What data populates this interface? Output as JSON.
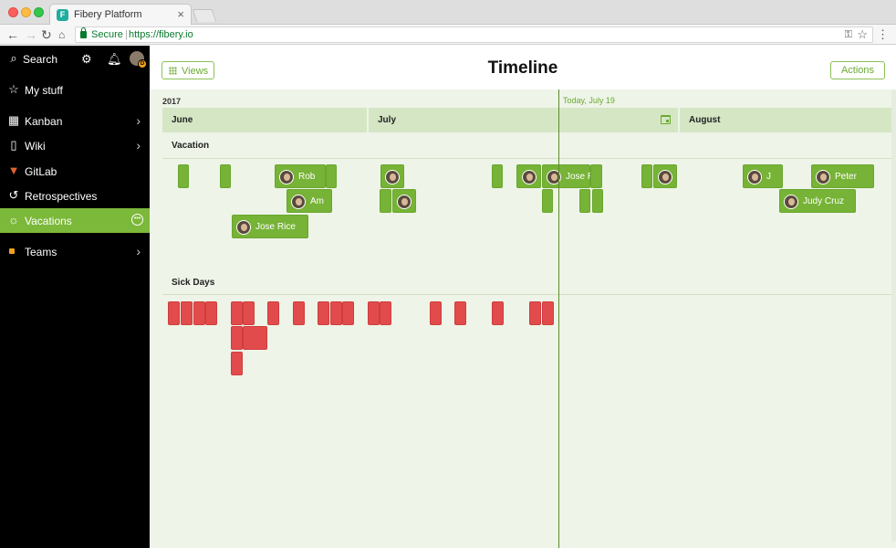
{
  "browser": {
    "tab_title": "Fibery Platform",
    "tab_close": "×",
    "favicon_letter": "F",
    "secure_label": "Secure",
    "url": "https://fibery.io"
  },
  "sidebar": {
    "search_label": "Search",
    "items": [
      {
        "label": "My stuff",
        "icon": "star-icon"
      },
      {
        "label": "Kanban",
        "icon": "kanban-icon"
      },
      {
        "label": "Wiki",
        "icon": "document-icon"
      },
      {
        "label": "GitLab",
        "icon": "gitlab-icon"
      },
      {
        "label": "Retrospectives",
        "icon": "history-icon"
      },
      {
        "label": "Vacations",
        "icon": "sun-icon"
      },
      {
        "label": "Teams",
        "icon": "square-icon"
      }
    ],
    "avatar_badge": "D"
  },
  "main": {
    "views_label": "Views",
    "title": "Timeline",
    "actions_label": "Actions"
  },
  "timeline": {
    "year": "2017",
    "today_label": "Today, July 19",
    "months": [
      "June",
      "July",
      "August"
    ],
    "sections": [
      "Vacation",
      "Sick Days"
    ],
    "vacation_named": [
      "Rob",
      "Am",
      "Jose Rice",
      "Jose R",
      "J",
      "Peter",
      "Judy Cruz"
    ]
  },
  "colors": {
    "accent": "#7cb83a",
    "vacation_bar": "#76b336",
    "sick_bar": "#e24b4b",
    "timeline_bg": "#eef4e8"
  }
}
